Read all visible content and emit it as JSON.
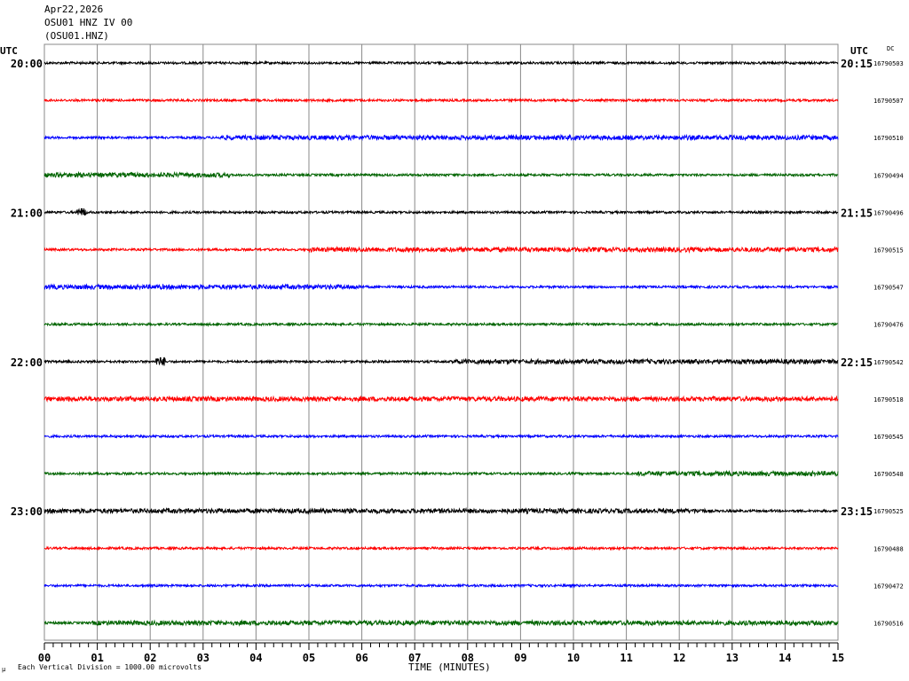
{
  "header": {
    "date": "Apr22,2026",
    "station": "OSU01 HNZ IV 00",
    "channel": "(OSU01.HNZ)"
  },
  "footer": {
    "scale_note": "Each Vertical Division = 1000.00 microvolts",
    "mu_symbol": "μ"
  },
  "chart_data": {
    "type": "line",
    "title": "",
    "xlabel": "TIME (MINUTES)",
    "left_axis_label": "UTC",
    "right_axis_label": "UTC",
    "dc_label": "DC",
    "xlim": [
      0,
      15
    ],
    "x_ticks": [
      "00",
      "01",
      "02",
      "03",
      "04",
      "05",
      "06",
      "07",
      "08",
      "09",
      "10",
      "11",
      "12",
      "13",
      "14",
      "15"
    ],
    "grid": "vertical lines every minute",
    "colors": [
      "#000000",
      "#ff0000",
      "#0000ff",
      "#006400"
    ],
    "left_time_labels": [
      "20:00",
      "",
      "",
      "",
      "21:00",
      "",
      "",
      "",
      "22:00",
      "",
      "",
      "",
      "23:00",
      "",
      "",
      ""
    ],
    "right_time_labels": [
      "20:15",
      "",
      "",
      "",
      "21:15",
      "",
      "",
      "",
      "22:15",
      "",
      "",
      "",
      "23:15",
      "",
      "",
      ""
    ],
    "dc_values": [
      "16790503",
      "16790507",
      "16790510",
      "16790494",
      "16790496",
      "16790515",
      "16790547",
      "16790476",
      "16790542",
      "16790518",
      "16790545",
      "16790548",
      "16790525",
      "16790488",
      "16790472",
      "16790516"
    ],
    "noisy_segments_minutes": [
      [],
      [],
      [
        [
          3.3,
          15
        ]
      ],
      [
        [
          0,
          3.5
        ]
      ],
      [
        [
          0.6,
          0.8
        ]
      ],
      [
        [
          5,
          15
        ]
      ],
      [
        [
          0,
          6
        ]
      ],
      [],
      [
        [
          2.1,
          2.3
        ],
        [
          7.7,
          15
        ]
      ],
      [
        [
          0,
          15
        ]
      ],
      [],
      [
        [
          11.2,
          15
        ]
      ],
      [
        [
          0,
          12.5
        ]
      ],
      [],
      [],
      [
        [
          0.9,
          15
        ]
      ]
    ]
  }
}
